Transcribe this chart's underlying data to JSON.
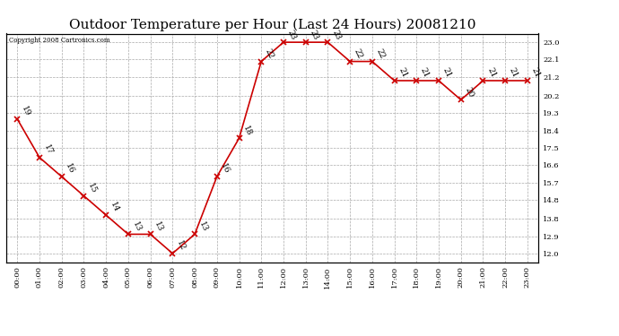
{
  "title": "Outdoor Temperature per Hour (Last 24 Hours) 20081210",
  "copyright_text": "Copyright 2008 Cartronics.com",
  "hours": [
    0,
    1,
    2,
    3,
    4,
    5,
    6,
    7,
    8,
    9,
    10,
    11,
    12,
    13,
    14,
    15,
    16,
    17,
    18,
    19,
    20,
    21,
    22,
    23
  ],
  "hour_labels": [
    "00:00",
    "01:00",
    "02:00",
    "03:00",
    "04:00",
    "05:00",
    "06:00",
    "07:00",
    "08:00",
    "09:00",
    "10:00",
    "11:00",
    "12:00",
    "13:00",
    "14:00",
    "15:00",
    "16:00",
    "17:00",
    "18:00",
    "19:00",
    "20:00",
    "21:00",
    "22:00",
    "23:00"
  ],
  "temperatures": [
    19,
    17,
    16,
    15,
    14,
    13,
    13,
    12,
    13,
    16,
    18,
    22,
    23,
    23,
    23,
    22,
    22,
    21,
    21,
    21,
    20,
    21,
    21,
    21
  ],
  "line_color": "#cc0000",
  "marker_color": "#cc0000",
  "bg_color": "#ffffff",
  "grid_color": "#aaaaaa",
  "y_ticks": [
    12.0,
    12.9,
    13.8,
    14.8,
    15.7,
    16.6,
    17.5,
    18.4,
    19.3,
    20.2,
    21.2,
    22.1,
    23.0
  ],
  "ylim_min": 11.55,
  "ylim_max": 23.45,
  "title_fontsize": 11,
  "label_fontsize": 6,
  "annotation_fontsize": 6.5
}
